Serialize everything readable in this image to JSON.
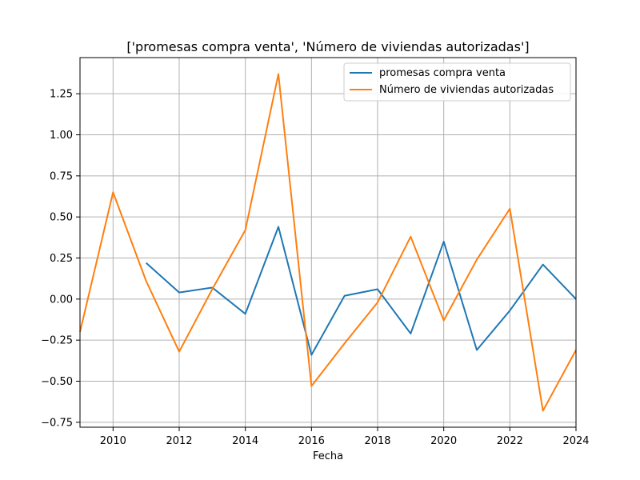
{
  "chart_data": {
    "type": "line",
    "title": "['promesas compra venta', 'Número de viviendas autorizadas']",
    "xlabel": "Fecha",
    "ylabel": "",
    "xlim": [
      2009,
      2024
    ],
    "ylim": [
      -0.78,
      1.47
    ],
    "grid": true,
    "legend_position": "top-right",
    "x_ticks": [
      2010,
      2012,
      2014,
      2016,
      2018,
      2020,
      2022,
      2024
    ],
    "x_tick_labels": [
      "2010",
      "2012",
      "2014",
      "2016",
      "2018",
      "2020",
      "2022",
      "2024"
    ],
    "y_ticks": [
      -0.75,
      -0.5,
      -0.25,
      0.0,
      0.25,
      0.5,
      0.75,
      1.0,
      1.25
    ],
    "y_tick_labels": [
      "−0.75",
      "−0.50",
      "−0.25",
      "0.00",
      "0.25",
      "0.50",
      "0.75",
      "1.00",
      "1.25"
    ],
    "series": [
      {
        "name": "promesas compra venta",
        "color": "#1f77b4",
        "x": [
          2011,
          2012,
          2013,
          2014,
          2015,
          2016,
          2017,
          2018,
          2019,
          2020,
          2021,
          2022,
          2023,
          2024
        ],
        "values": [
          0.22,
          0.04,
          0.07,
          -0.09,
          0.44,
          -0.34,
          0.02,
          0.06,
          -0.21,
          0.35,
          -0.31,
          -0.07,
          0.21,
          0.0
        ]
      },
      {
        "name": "Número de viviendas autorizadas",
        "color": "#ff7f0e",
        "x": [
          2009,
          2010,
          2011,
          2012,
          2013,
          2014,
          2015,
          2016,
          2017,
          2018,
          2019,
          2020,
          2021,
          2022,
          2023,
          2024
        ],
        "values": [
          -0.2,
          0.65,
          0.11,
          -0.32,
          0.06,
          0.42,
          1.37,
          -0.53,
          -0.27,
          -0.02,
          0.38,
          -0.13,
          0.24,
          0.55,
          -0.68,
          -0.31
        ]
      }
    ]
  }
}
